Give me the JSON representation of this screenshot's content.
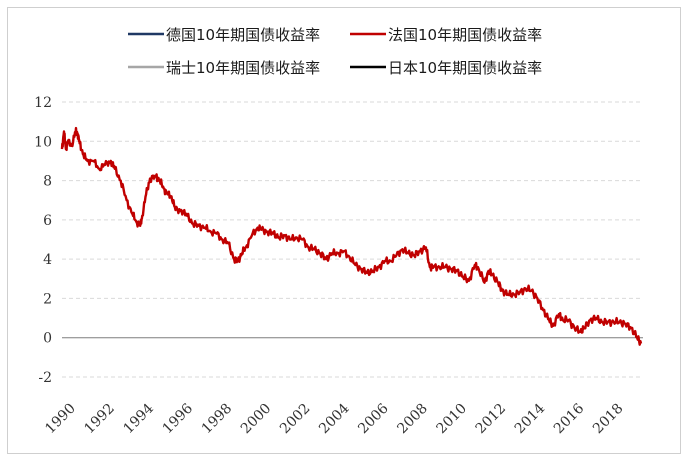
{
  "chart_data": {
    "type": "line",
    "title": "",
    "xlabel": "",
    "ylabel": "",
    "ylim": [
      -2,
      12
    ],
    "yticks": [
      -2,
      0,
      2,
      4,
      6,
      8,
      10,
      12
    ],
    "xlim": [
      1990,
      2019.7
    ],
    "xticks": [
      "1990",
      "1992",
      "1994",
      "1996",
      "1998",
      "2000",
      "2002",
      "2004",
      "2006",
      "2008",
      "2010",
      "2012",
      "2014",
      "2016",
      "2018"
    ],
    "grid": "horizontal dashed",
    "legend_position": "top",
    "series": [
      {
        "name": "德国10年期国债收益率",
        "color": "#1f3864",
        "x": [],
        "y": []
      },
      {
        "name": "法国10年期国债收益率",
        "color": "#c00000",
        "x": [
          1990.0,
          1990.1,
          1990.2,
          1990.3,
          1990.5,
          1990.7,
          1990.8,
          1990.9,
          1991.1,
          1991.3,
          1991.6,
          1991.9,
          1992.2,
          1992.5,
          1992.7,
          1993.0,
          1993.3,
          1993.6,
          1993.8,
          1994.0,
          1994.1,
          1994.3,
          1994.5,
          1994.8,
          1995.0,
          1995.2,
          1995.4,
          1995.6,
          1995.8,
          1996.1,
          1996.4,
          1996.7,
          1997.0,
          1997.3,
          1997.6,
          1997.9,
          1998.2,
          1998.5,
          1998.8,
          1999.0,
          1999.2,
          1999.4,
          1999.7,
          2000.0,
          2000.2,
          2000.5,
          2000.8,
          2001.1,
          2001.4,
          2001.7,
          2002.0,
          2002.3,
          2002.6,
          2002.9,
          2003.2,
          2003.5,
          2003.8,
          2004.1,
          2004.4,
          2004.7,
          2005.0,
          2005.3,
          2005.6,
          2005.9,
          2006.2,
          2006.5,
          2006.8,
          2007.1,
          2007.4,
          2007.7,
          2008.0,
          2008.3,
          2008.6,
          2008.8,
          2009.0,
          2009.3,
          2009.6,
          2009.9,
          2010.2,
          2010.5,
          2010.8,
          2011.1,
          2011.3,
          2011.6,
          2011.8,
          2012.0,
          2012.3,
          2012.5,
          2012.8,
          2013.1,
          2013.4,
          2013.7,
          2014.0,
          2014.3,
          2014.6,
          2014.9,
          2015.1,
          2015.4,
          2015.6,
          2015.9,
          2016.2,
          2016.5,
          2016.7,
          2017.0,
          2017.3,
          2017.6,
          2017.9,
          2018.2,
          2018.5,
          2018.8,
          2019.1,
          2019.4,
          2019.6
        ],
        "y": [
          9.6,
          10.5,
          9.6,
          10.0,
          9.8,
          10.5,
          10.4,
          9.9,
          9.3,
          9.0,
          9.0,
          8.6,
          8.8,
          9.0,
          8.6,
          8.0,
          7.0,
          6.3,
          5.9,
          5.7,
          6.2,
          7.3,
          8.1,
          8.2,
          8.0,
          7.6,
          7.3,
          7.2,
          6.5,
          6.5,
          6.2,
          5.8,
          5.7,
          5.6,
          5.4,
          5.3,
          5.0,
          4.8,
          4.0,
          3.9,
          4.3,
          4.6,
          5.2,
          5.6,
          5.5,
          5.4,
          5.3,
          5.1,
          5.2,
          5.0,
          5.1,
          5.0,
          4.6,
          4.5,
          4.3,
          4.0,
          4.3,
          4.3,
          4.4,
          4.1,
          3.7,
          3.5,
          3.3,
          3.4,
          3.6,
          3.9,
          3.9,
          4.2,
          4.5,
          4.3,
          4.2,
          4.4,
          4.6,
          3.6,
          3.6,
          3.6,
          3.6,
          3.5,
          3.4,
          3.1,
          2.9,
          3.7,
          3.5,
          2.8,
          3.4,
          3.2,
          2.8,
          2.4,
          2.2,
          2.2,
          2.3,
          2.5,
          2.4,
          2.0,
          1.4,
          0.9,
          0.6,
          1.2,
          0.9,
          0.9,
          0.5,
          0.3,
          0.5,
          0.9,
          1.0,
          0.8,
          0.8,
          0.8,
          0.8,
          0.7,
          0.5,
          0.0,
          -0.3
        ]
      },
      {
        "name": "瑞士10年期国债收益率",
        "color": "#a6a6a6",
        "x": [],
        "y": []
      },
      {
        "name": "日本10年期国债收益率",
        "color": "#000000",
        "x": [],
        "y": []
      }
    ]
  }
}
